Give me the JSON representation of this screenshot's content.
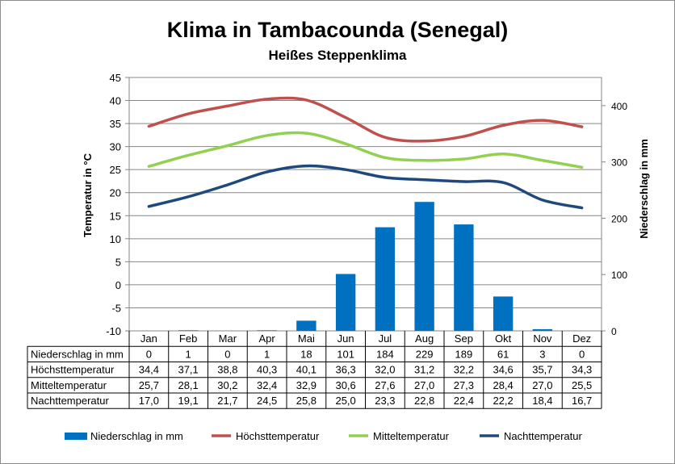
{
  "chart_data": {
    "type": "bar+line",
    "title": "Klima in Tambacounda (Senegal)",
    "subtitle": "Heißes Steppenklima",
    "ylabel_left": "Temperatur in °C",
    "ylabel_right": "Niederschlag in mm",
    "ylim_left": [
      -10,
      45
    ],
    "yticks_left": [
      "45",
      "40",
      "35",
      "30",
      "25",
      "20",
      "15",
      "10",
      "5",
      "0",
      "-5",
      "-10"
    ],
    "ylim_right": [
      0,
      450
    ],
    "yticks_right": [
      "400",
      "300",
      "200",
      "100",
      "0"
    ],
    "categories": [
      "Jan",
      "Feb",
      "Mar",
      "Apr",
      "Mai",
      "Jun",
      "Jul",
      "Aug",
      "Sep",
      "Okt",
      "Nov",
      "Dez"
    ],
    "gridlines": true,
    "legend_position": "bottom",
    "series": [
      {
        "name": "Niederschlag in mm",
        "kind": "bar",
        "axis": "right",
        "color": "#0070c0",
        "values": [
          0,
          1,
          0,
          1,
          18,
          101,
          184,
          229,
          189,
          61,
          3,
          0
        ],
        "labels": [
          "0",
          "1",
          "0",
          "1",
          "18",
          "101",
          "184",
          "229",
          "189",
          "61",
          "3",
          "0"
        ]
      },
      {
        "name": "Höchsttemperatur",
        "kind": "line",
        "axis": "left",
        "color": "#c0504d",
        "values": [
          34.4,
          37.1,
          38.8,
          40.3,
          40.1,
          36.3,
          32.0,
          31.2,
          32.2,
          34.6,
          35.7,
          34.3
        ],
        "labels": [
          "34,4",
          "37,1",
          "38,8",
          "40,3",
          "40,1",
          "36,3",
          "32,0",
          "31,2",
          "32,2",
          "34,6",
          "35,7",
          "34,3"
        ]
      },
      {
        "name": "Mitteltemperatur",
        "kind": "line",
        "axis": "left",
        "color": "#92d050",
        "values": [
          25.7,
          28.1,
          30.2,
          32.4,
          32.9,
          30.6,
          27.6,
          27.0,
          27.3,
          28.4,
          27.0,
          25.5
        ],
        "labels": [
          "25,7",
          "28,1",
          "30,2",
          "32,4",
          "32,9",
          "30,6",
          "27,6",
          "27,0",
          "27,3",
          "28,4",
          "27,0",
          "25,5"
        ]
      },
      {
        "name": "Nachttemperatur",
        "kind": "line",
        "axis": "left",
        "color": "#1f497d",
        "values": [
          17.0,
          19.1,
          21.7,
          24.5,
          25.8,
          25.0,
          23.3,
          22.8,
          22.4,
          22.2,
          18.4,
          16.7
        ],
        "labels": [
          "17,0",
          "19,1",
          "21,7",
          "24,5",
          "25,8",
          "25,0",
          "23,3",
          "22,8",
          "22,4",
          "22,2",
          "18,4",
          "16,7"
        ]
      }
    ]
  }
}
